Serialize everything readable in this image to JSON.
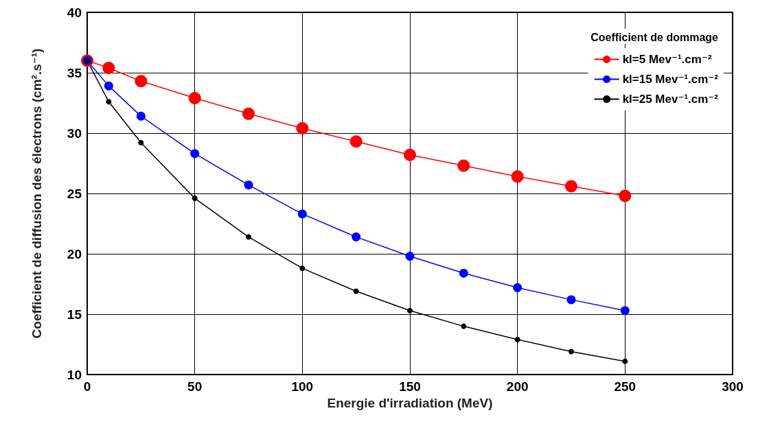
{
  "chart_data": {
    "type": "line",
    "xlabel": "Energie d'irradiation (MeV)",
    "ylabel": "Coefficient de diffusion des électrons (cm².s⁻¹)",
    "legend_title": "Coefficient de dommage",
    "x": [
      0,
      10,
      25,
      50,
      75,
      100,
      125,
      150,
      175,
      200,
      225,
      250
    ],
    "series": [
      {
        "name": "kl=5 Mev⁻¹.cm⁻²",
        "color": "#ff0000",
        "values": [
          36,
          35.4,
          34.3,
          32.9,
          31.6,
          30.4,
          29.3,
          28.2,
          27.3,
          26.4,
          25.6,
          24.8
        ]
      },
      {
        "name": "kl=15 Mev⁻¹.cm⁻²",
        "color": "#0000ff",
        "values": [
          36,
          33.9,
          31.4,
          28.3,
          25.7,
          23.3,
          21.4,
          19.8,
          18.4,
          17.2,
          16.2,
          15.3
        ]
      },
      {
        "name": "kl=25 Mev⁻¹.cm⁻²",
        "color": "#000000",
        "values": [
          36,
          32.6,
          29.2,
          24.6,
          21.4,
          18.8,
          16.9,
          15.3,
          14.0,
          12.9,
          11.9,
          11.1
        ]
      }
    ],
    "xlim": [
      0,
      300
    ],
    "xticks": [
      0,
      50,
      100,
      150,
      200,
      250,
      300
    ],
    "ylim": [
      10,
      40
    ],
    "yticks": [
      10,
      15,
      20,
      25,
      30,
      35,
      40
    ],
    "grid": true,
    "legend": "top right",
    "marker": "circle",
    "line_style": "solid"
  }
}
